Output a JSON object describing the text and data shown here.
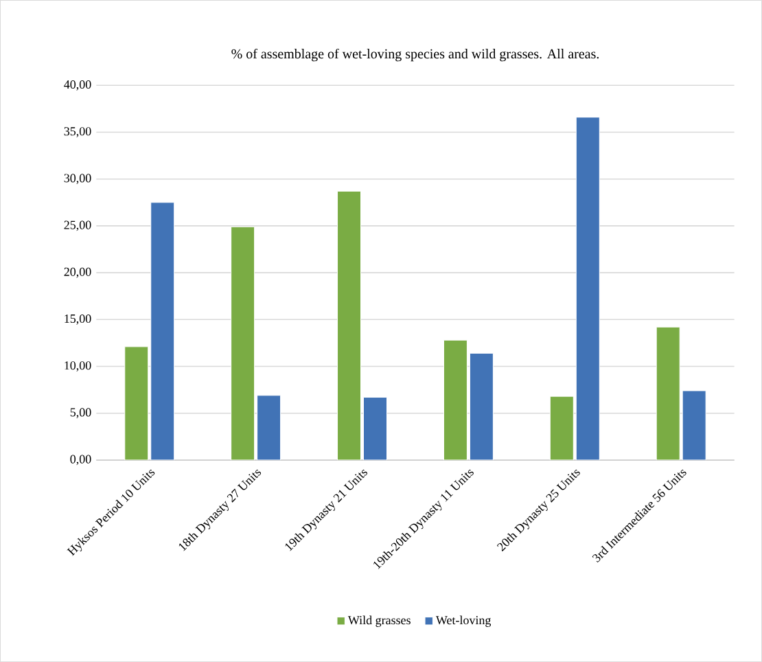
{
  "chart_data": {
    "type": "bar",
    "title": "% of assemblage of wet-loving species and wild grasses. All areas.",
    "categories": [
      "Hyksos Period  10 Units",
      "18th Dynasty  27 Units",
      "19th Dynasty  21 Units",
      "19th-20th Dynasty 11 Units",
      "20th Dynasty 25 Units",
      "3rd Intermediate  56 Units"
    ],
    "series": [
      {
        "name": "Wild grasses",
        "color": "#7aac44",
        "values": [
          12.1,
          24.9,
          28.7,
          12.8,
          6.8,
          14.2
        ]
      },
      {
        "name": "Wet-loving",
        "color": "#4173b6",
        "values": [
          27.5,
          6.9,
          6.7,
          11.4,
          36.6,
          7.4
        ]
      }
    ],
    "ylim": [
      0,
      40
    ],
    "yticks": [
      {
        "value": 0,
        "label": "0,00"
      },
      {
        "value": 5,
        "label": "5,00"
      },
      {
        "value": 10,
        "label": "10,00"
      },
      {
        "value": 15,
        "label": "15,00"
      },
      {
        "value": 20,
        "label": "20,00"
      },
      {
        "value": 25,
        "label": "25,00"
      },
      {
        "value": 30,
        "label": "30,00"
      },
      {
        "value": 35,
        "label": "35,00"
      },
      {
        "value": 40,
        "label": "40,00"
      }
    ],
    "grid": "y",
    "legend": "bottom"
  }
}
